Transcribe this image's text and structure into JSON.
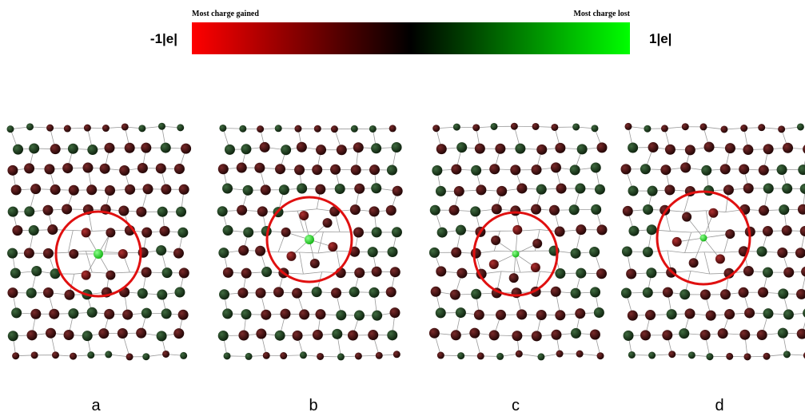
{
  "colorbar": {
    "left_caption": "Most charge gained",
    "right_caption": "Most charge lost",
    "min_label": "-1|e|",
    "max_label": "1|e|"
  },
  "panels": [
    {
      "label": "a"
    },
    {
      "label": "b"
    },
    {
      "label": "c"
    },
    {
      "label": "d"
    }
  ]
}
